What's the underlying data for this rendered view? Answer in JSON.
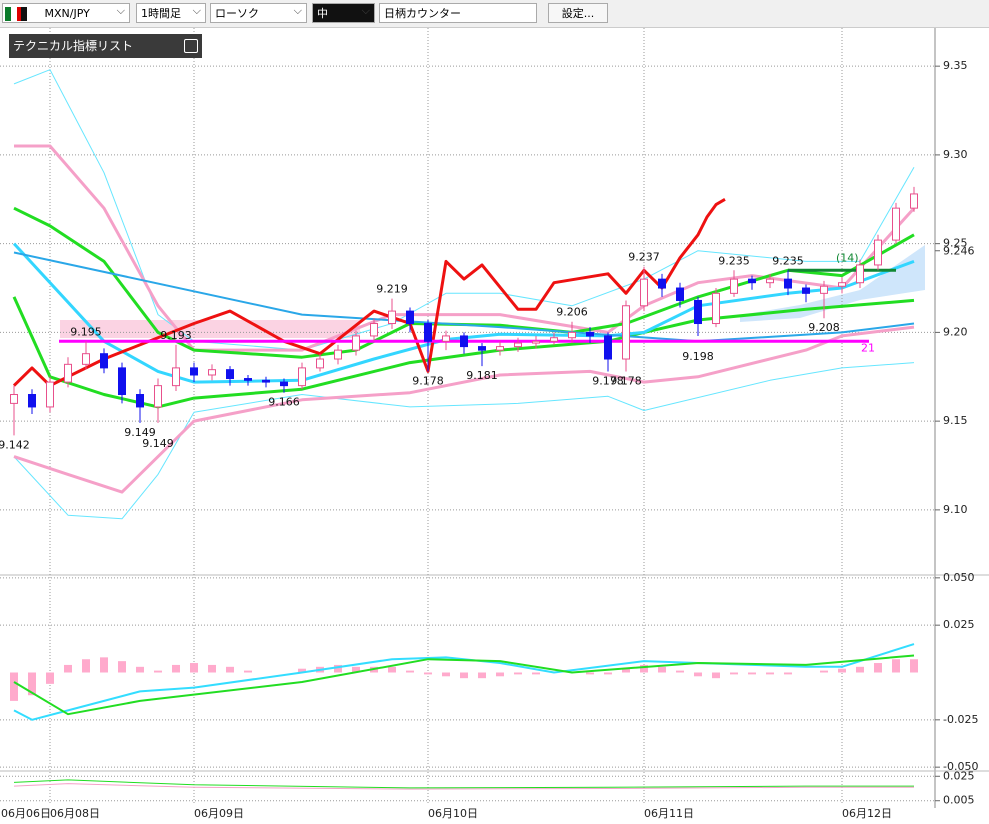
{
  "toolbar": {
    "pair": "MXN/JPY",
    "timeframe": "1時間足",
    "chart_style": "ローソク",
    "size": "中",
    "counter": "日柄カウンター",
    "settings": "設定..."
  },
  "indicator_panel": "テクニカル指標リスト",
  "chart_data": [
    {
      "type": "candlestick",
      "categories": [
        "06月06日",
        null,
        "06月08日",
        null,
        null,
        null,
        null,
        null,
        null,
        null,
        "06月09日",
        null,
        null,
        null,
        null,
        null,
        null,
        null,
        null,
        null,
        null,
        null,
        null,
        "06月10日",
        null,
        null,
        null,
        null,
        null,
        null,
        null,
        null,
        null,
        null,
        null,
        "06月11日",
        null,
        null,
        null,
        null,
        null,
        null,
        null,
        null,
        null,
        null,
        "06月12日",
        null,
        null,
        null,
        null
      ],
      "open": [
        9.16,
        9.165,
        9.158,
        9.172,
        9.182,
        9.188,
        9.18,
        9.165,
        9.158,
        9.17,
        9.18,
        9.176,
        9.179,
        9.174,
        9.173,
        9.172,
        9.17,
        9.18,
        9.185,
        9.19,
        9.198,
        9.205,
        9.212,
        9.205,
        9.195,
        9.198,
        9.192,
        9.19,
        9.192,
        9.194,
        9.195,
        9.197,
        9.2,
        9.198,
        9.185,
        9.215,
        9.23,
        9.225,
        9.218,
        9.205,
        9.222,
        9.23,
        9.228,
        9.23,
        9.225,
        9.222,
        9.226,
        9.228,
        9.238,
        9.252,
        9.27
      ],
      "high": [
        9.17,
        9.168,
        9.175,
        9.186,
        9.195,
        9.191,
        9.183,
        9.168,
        9.174,
        9.193,
        9.183,
        9.182,
        9.181,
        9.176,
        9.175,
        9.174,
        9.183,
        9.188,
        9.193,
        9.201,
        9.208,
        9.219,
        9.214,
        9.207,
        9.201,
        9.2,
        9.194,
        9.195,
        9.197,
        9.198,
        9.2,
        9.206,
        9.203,
        9.2,
        9.218,
        9.237,
        9.233,
        9.228,
        9.22,
        9.225,
        9.235,
        9.232,
        9.233,
        9.235,
        9.227,
        9.229,
        9.231,
        9.241,
        9.255,
        9.273,
        9.282
      ],
      "low": [
        9.142,
        9.154,
        9.155,
        9.169,
        9.179,
        9.177,
        9.16,
        9.149,
        9.149,
        9.167,
        9.172,
        9.173,
        9.17,
        9.17,
        9.169,
        9.166,
        9.168,
        9.178,
        9.182,
        9.187,
        9.195,
        9.202,
        9.2,
        9.178,
        9.19,
        9.188,
        9.181,
        9.187,
        9.189,
        9.191,
        9.193,
        9.194,
        9.194,
        9.178,
        9.178,
        9.212,
        9.22,
        9.214,
        9.198,
        9.203,
        9.22,
        9.224,
        9.225,
        9.221,
        9.217,
        9.208,
        9.222,
        9.225,
        9.235,
        9.25,
        9.268
      ],
      "close": [
        9.165,
        9.158,
        9.172,
        9.182,
        9.188,
        9.18,
        9.165,
        9.158,
        9.17,
        9.18,
        9.176,
        9.179,
        9.174,
        9.173,
        9.172,
        9.17,
        9.18,
        9.185,
        9.19,
        9.198,
        9.205,
        9.212,
        9.205,
        9.195,
        9.198,
        9.192,
        9.19,
        9.192,
        9.194,
        9.195,
        9.197,
        9.2,
        9.198,
        9.185,
        9.215,
        9.23,
        9.225,
        9.218,
        9.205,
        9.222,
        9.23,
        9.228,
        9.23,
        9.225,
        9.222,
        9.226,
        9.228,
        9.238,
        9.252,
        9.27,
        9.278
      ],
      "up_color": "#e8508c",
      "down_color": "#1010ee",
      "high_labels": [
        4,
        9,
        21,
        31,
        35,
        40,
        43
      ],
      "low_labels": [
        0,
        7,
        8,
        15,
        23,
        26,
        33,
        34,
        38,
        45
      ],
      "series": [
        {
          "color": "#66e6ff",
          "width": 1,
          "x": [
            0,
            2,
            5,
            8,
            10,
            16,
            21,
            24,
            27,
            31,
            35,
            38,
            44,
            47,
            50
          ],
          "values": [
            9.34,
            9.348,
            9.29,
            9.21,
            9.195,
            9.19,
            9.205,
            9.222,
            9.222,
            9.215,
            9.23,
            9.246,
            9.24,
            9.24,
            9.293
          ]
        },
        {
          "color": "#66e6ff",
          "width": 1,
          "x": [
            0,
            3,
            6,
            8,
            10,
            16,
            22,
            28,
            33,
            35,
            42,
            46,
            50
          ],
          "values": [
            9.13,
            9.097,
            9.095,
            9.12,
            9.155,
            9.165,
            9.158,
            9.16,
            9.164,
            9.156,
            9.173,
            9.18,
            9.183
          ]
        },
        {
          "color": "#f5a0c8",
          "width": 3,
          "x": [
            0,
            2,
            5,
            8,
            10,
            16,
            21,
            27,
            33,
            35,
            38,
            41,
            46,
            50
          ],
          "values": [
            9.305,
            9.305,
            9.27,
            9.215,
            9.19,
            9.19,
            9.21,
            9.21,
            9.2,
            9.215,
            9.228,
            9.232,
            9.225,
            9.27
          ]
        },
        {
          "color": "#f5a0c8",
          "width": 3,
          "x": [
            0,
            3,
            6,
            10,
            16,
            22,
            27,
            32,
            35,
            38,
            44,
            46,
            50
          ],
          "values": [
            9.13,
            9.12,
            9.11,
            9.15,
            9.162,
            9.166,
            9.176,
            9.178,
            9.172,
            9.175,
            9.19,
            9.198,
            9.203
          ]
        },
        {
          "color": "#22dd22",
          "width": 3,
          "x": [
            0,
            2,
            5,
            8,
            10,
            16,
            19,
            22,
            27,
            31,
            34,
            38,
            43,
            46,
            50
          ],
          "values": [
            9.27,
            9.26,
            9.24,
            9.2,
            9.19,
            9.186,
            9.19,
            9.205,
            9.204,
            9.2,
            9.205,
            9.22,
            9.235,
            9.232,
            9.255
          ]
        },
        {
          "color": "#22dd22",
          "width": 3,
          "x": [
            0,
            2,
            5,
            8,
            10,
            16,
            22,
            27,
            33,
            35,
            38,
            44,
            50
          ],
          "values": [
            9.22,
            9.175,
            9.165,
            9.158,
            9.163,
            9.168,
            9.183,
            9.19,
            9.195,
            9.2,
            9.207,
            9.213,
            9.218
          ]
        },
        {
          "color": "#33d6ff",
          "width": 3,
          "x": [
            0,
            5,
            8,
            10,
            16,
            20,
            24,
            27,
            33,
            35,
            38,
            43,
            46,
            50
          ],
          "values": [
            9.25,
            9.195,
            9.178,
            9.172,
            9.173,
            9.185,
            9.196,
            9.199,
            9.198,
            9.2,
            9.215,
            9.222,
            9.225,
            9.24
          ]
        },
        {
          "color": "#2aa7e8",
          "width": 2,
          "x": [
            0,
            16,
            27,
            38,
            46,
            50
          ],
          "values": [
            9.245,
            9.21,
            9.203,
            9.195,
            9.2,
            9.205
          ]
        },
        {
          "color": "#ee1111",
          "width": 3,
          "x": [
            0,
            1,
            2,
            5,
            10,
            12,
            15,
            17,
            20,
            22,
            23,
            24,
            25,
            26,
            28,
            29,
            30,
            33,
            34,
            35,
            36,
            37,
            38,
            38.5,
            39,
            39.5
          ],
          "values": [
            9.17,
            9.18,
            9.17,
            9.185,
            9.205,
            9.212,
            9.195,
            9.188,
            9.212,
            9.205,
            9.178,
            9.24,
            9.23,
            9.238,
            9.213,
            9.213,
            9.228,
            9.233,
            9.222,
            9.235,
            9.225,
            9.242,
            9.255,
            9.265,
            9.272,
            9.275
          ]
        }
      ],
      "levels": [
        {
          "value": 9.195,
          "x": [
            2.5,
            47.5
          ],
          "color": "#ff00ff",
          "label": "21"
        },
        {
          "value": 9.235,
          "x": [
            43,
            49
          ],
          "color": "#118833",
          "label": "(14)"
        }
      ],
      "current_price": 9.246,
      "ylim": [
        9.065,
        9.3715
      ],
      "yticks": [
        {
          "value": 9.1,
          "label": "9.10"
        },
        9.15,
        {
          "value": 9.2,
          "label": "9.20"
        },
        9.25,
        {
          "value": 9.3,
          "label": "9.30"
        },
        9.35
      ],
      "grid": true
    },
    {
      "type": "macd",
      "histogram": [
        -0.015,
        -0.012,
        -0.006,
        0.004,
        0.007,
        0.008,
        0.006,
        0.003,
        0.001,
        0.004,
        0.005,
        0.004,
        0.003,
        0.001,
        0.0,
        0.0,
        0.002,
        0.003,
        0.004,
        0.003,
        0.003,
        0.003,
        0.001,
        -0.001,
        -0.002,
        -0.003,
        -0.003,
        -0.002,
        -0.001,
        -0.001,
        0.0,
        0.0,
        -0.001,
        -0.001,
        0.002,
        0.004,
        0.003,
        0.001,
        -0.002,
        -0.003,
        -0.001,
        -0.001,
        -0.001,
        -0.001,
        0.0,
        0.001,
        0.002,
        0.003,
        0.005,
        0.007,
        0.007
      ],
      "histogram_color": "#ffaacc",
      "series": [
        {
          "color": "#33ddff",
          "width": 2,
          "x": [
            0,
            1,
            3,
            7,
            10,
            16,
            21,
            24,
            27,
            30,
            35,
            38,
            44,
            46,
            50
          ],
          "values": [
            -0.02,
            -0.025,
            -0.02,
            -0.01,
            -0.008,
            0.0,
            0.007,
            0.008,
            0.005,
            0.0,
            0.006,
            0.005,
            0.003,
            0.003,
            0.015
          ]
        },
        {
          "color": "#22dd22",
          "width": 2,
          "x": [
            0,
            3,
            7,
            16,
            23,
            27,
            31,
            38,
            44,
            50
          ],
          "values": [
            -0.005,
            -0.022,
            -0.015,
            -0.005,
            0.007,
            0.006,
            0.0,
            0.005,
            0.004,
            0.009
          ]
        }
      ],
      "ylim": [
        -0.0515,
        0.0515
      ],
      "yticks": [
        {
          "value": -0.05,
          "label": "-0.050"
        },
        -0.025,
        0.025,
        {
          "value": 0.05,
          "label": "0.050"
        }
      ],
      "grid": true
    },
    {
      "type": "line",
      "series": [
        {
          "color": "#22dd22",
          "width": 1,
          "x": [
            0,
            3,
            10,
            22,
            33,
            44,
            50
          ],
          "values": [
            0.02,
            0.022,
            0.018,
            0.0155,
            0.016,
            0.017,
            0.017
          ]
        },
        {
          "color": "#f5a0c8",
          "width": 1,
          "x": [
            0,
            3,
            10,
            22,
            33,
            44,
            50
          ],
          "values": [
            0.017,
            0.019,
            0.016,
            0.0145,
            0.015,
            0.016,
            0.016
          ]
        }
      ],
      "ylim": [
        0.0015,
        0.0285
      ],
      "yticks": [
        0.005,
        0.025
      ],
      "grid": true
    }
  ]
}
